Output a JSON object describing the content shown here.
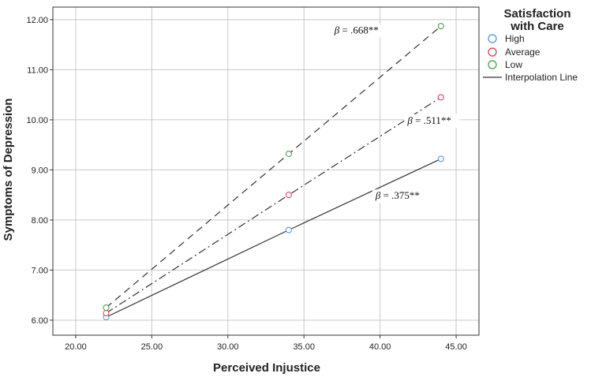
{
  "chart_data": {
    "type": "line",
    "xlabel": "Perceived Injustice",
    "ylabel": "Symptoms of Depression",
    "xlim": [
      18.5,
      46.5
    ],
    "ylim": [
      5.7,
      12.25
    ],
    "x_ticks": [
      "20.00",
      "25.00",
      "30.00",
      "35.00",
      "40.00",
      "45.00"
    ],
    "x_tick_values": [
      20,
      25,
      30,
      35,
      40,
      45
    ],
    "y_ticks": [
      "6.00",
      "7.00",
      "8.00",
      "9.00",
      "10.00",
      "11.00",
      "12.00"
    ],
    "y_tick_values": [
      6,
      7,
      8,
      9,
      10,
      11,
      12
    ],
    "grid": true,
    "legend": {
      "title": "Satisfaction with Care",
      "title_lines": [
        "Satisfaction",
        "with Care"
      ],
      "placement": "top-right",
      "entries": [
        "High",
        "Average",
        "Low",
        "Interpolation Line"
      ]
    },
    "series": [
      {
        "name": "High",
        "color": "#4a90d9",
        "line_style": "solid",
        "x": [
          22,
          34,
          44
        ],
        "y": [
          6.06,
          7.8,
          9.22
        ]
      },
      {
        "name": "Average",
        "color": "#d9334a",
        "line_style": "dashdot",
        "x": [
          22,
          34,
          44
        ],
        "y": [
          6.14,
          8.5,
          10.45
        ]
      },
      {
        "name": "Low",
        "color": "#3a9a3a",
        "line_style": "dashed",
        "x": [
          22,
          34,
          44
        ],
        "y": [
          6.25,
          9.32,
          11.87
        ]
      }
    ],
    "annotations": [
      {
        "beta": "β",
        "text": " = .668**",
        "series": "Low",
        "x": 37.0,
        "y": 11.72
      },
      {
        "beta": "β",
        "text": " = .511**",
        "series": "Average",
        "x": 41.8,
        "y": 9.92
      },
      {
        "beta": "β",
        "text": " = .375**",
        "series": "High",
        "x": 39.7,
        "y": 8.42
      }
    ]
  }
}
